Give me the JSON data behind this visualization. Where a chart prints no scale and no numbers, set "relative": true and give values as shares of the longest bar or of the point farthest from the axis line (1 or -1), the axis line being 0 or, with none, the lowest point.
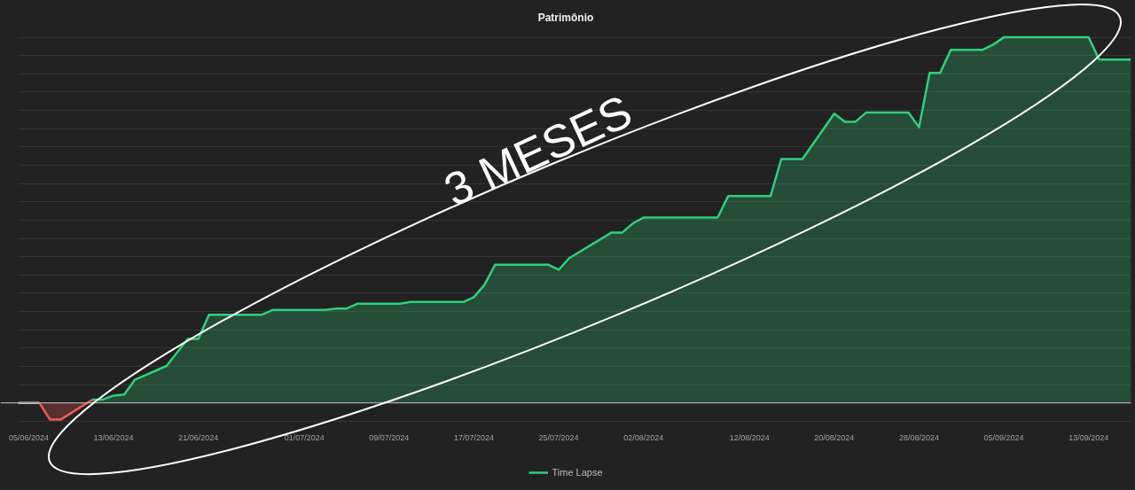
{
  "chart_data": {
    "type": "area",
    "title": "Patrimônio",
    "relative": true,
    "grid": "y",
    "legend": "bottom",
    "annotations": [
      "3 MESES"
    ],
    "xlim": [
      "2024-06-04",
      "2024-09-17"
    ],
    "xticks": [
      {
        "value": "2024-06-05",
        "label": "05/06/2024"
      },
      {
        "value": "2024-06-13",
        "label": "13/06/2024"
      },
      {
        "value": "2024-06-21",
        "label": "21/06/2024"
      },
      {
        "value": "2024-07-01",
        "label": "01/07/2024"
      },
      {
        "value": "2024-07-09",
        "label": "09/07/2024"
      },
      {
        "value": "2024-07-17",
        "label": "17/07/2024"
      },
      {
        "value": "2024-07-25",
        "label": "25/07/2024"
      },
      {
        "value": "2024-08-02",
        "label": "02/08/2024"
      },
      {
        "value": "2024-08-12",
        "label": "12/08/2024"
      },
      {
        "value": "2024-08-20",
        "label": "20/08/2024"
      },
      {
        "value": "2024-08-28",
        "label": "28/08/2024"
      },
      {
        "value": "2024-09-05",
        "label": "05/09/2024"
      },
      {
        "value": "2024-09-13",
        "label": "13/09/2024"
      }
    ],
    "series": [
      {
        "type": "line",
        "color": "#c8c8c8",
        "x": [
          "2024-06-04",
          "2024-06-06"
        ],
        "values": [
          0,
          0
        ]
      },
      {
        "color": "#f25a5a",
        "x": [
          "2024-06-06",
          "2024-06-07",
          "2024-06-08",
          "2024-06-11"
        ],
        "values": [
          0,
          -0.046,
          -0.046,
          0.009
        ]
      },
      {
        "name": "Time Lapse",
        "color": "#2fd07c",
        "x": [
          "2024-06-11",
          "2024-06-12",
          "2024-06-13",
          "2024-06-14",
          "2024-06-15",
          "2024-06-18",
          "2024-06-20",
          "2024-06-21",
          "2024-06-22",
          "2024-06-27",
          "2024-06-28",
          "2024-07-03",
          "2024-07-04",
          "2024-07-05",
          "2024-07-06",
          "2024-07-10",
          "2024-07-11",
          "2024-07-16",
          "2024-07-17",
          "2024-07-18",
          "2024-07-19",
          "2024-07-24",
          "2024-07-25",
          "2024-07-26",
          "2024-07-30",
          "2024-07-31",
          "2024-08-01",
          "2024-08-02",
          "2024-08-09",
          "2024-08-10",
          "2024-08-14",
          "2024-08-15",
          "2024-08-17",
          "2024-08-20",
          "2024-08-21",
          "2024-08-22",
          "2024-08-23",
          "2024-08-27",
          "2024-08-28",
          "2024-08-29",
          "2024-08-30",
          "2024-08-31",
          "2024-09-03",
          "2024-09-04",
          "2024-09-05",
          "2024-09-13",
          "2024-09-14",
          "2024-09-17"
        ],
        "values": [
          0.009,
          0.009,
          0.02,
          0.023,
          0.063,
          0.101,
          0.175,
          0.175,
          0.241,
          0.241,
          0.254,
          0.254,
          0.258,
          0.258,
          0.271,
          0.271,
          0.276,
          0.276,
          0.289,
          0.323,
          0.378,
          0.378,
          0.364,
          0.396,
          0.466,
          0.466,
          0.491,
          0.507,
          0.507,
          0.566,
          0.566,
          0.667,
          0.667,
          0.791,
          0.769,
          0.769,
          0.794,
          0.794,
          0.754,
          0.903,
          0.903,
          0.966,
          0.966,
          0.98,
          1.0,
          1.0,
          0.939,
          0.939
        ]
      }
    ]
  }
}
